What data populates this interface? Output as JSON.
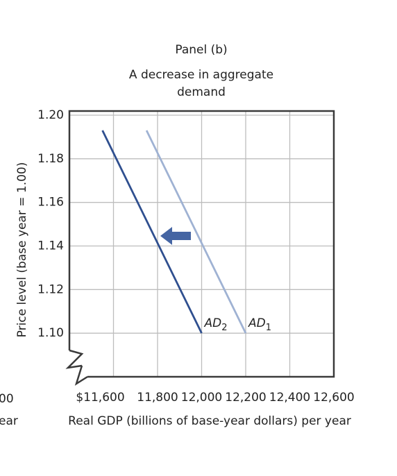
{
  "chart_data": {
    "type": "line",
    "title": "Panel (b)",
    "subtitle": [
      "A decrease in aggregate",
      "demand"
    ],
    "x_label": "Real GDP (billions of base-year dollars) per year",
    "y_label": "Price level (base year = 1.00)",
    "cropped_fragments": [
      "00",
      "ear"
    ],
    "xlim": [
      11400,
      12600
    ],
    "ylim": [
      1.08,
      1.2
    ],
    "xticks": [
      {
        "value": 11600,
        "label": "$11,600"
      },
      {
        "value": 11800,
        "label": "11,800"
      },
      {
        "value": 12000,
        "label": "12,000"
      },
      {
        "value": 12200,
        "label": "12,200"
      },
      {
        "value": 12400,
        "label": "12,400"
      },
      {
        "value": 12600,
        "label": "12,600"
      }
    ],
    "yticks": [
      {
        "value": 1.1,
        "label": "1.10"
      },
      {
        "value": 1.12,
        "label": "1.12"
      },
      {
        "value": 1.14,
        "label": "1.14"
      },
      {
        "value": 1.16,
        "label": "1.16"
      },
      {
        "value": 1.18,
        "label": "1.18"
      },
      {
        "value": 1.2,
        "label": "1.20"
      }
    ],
    "grid": true,
    "series": [
      {
        "name": "AD",
        "subscript": "2",
        "color": "#2f4f8f",
        "x": [
          11550,
          12000
        ],
        "values": [
          1.193,
          1.1
        ]
      },
      {
        "name": "AD",
        "subscript": "1",
        "color": "#9fb2d3",
        "x": [
          11750,
          12200
        ],
        "values": [
          1.193,
          1.1
        ]
      }
    ]
  }
}
